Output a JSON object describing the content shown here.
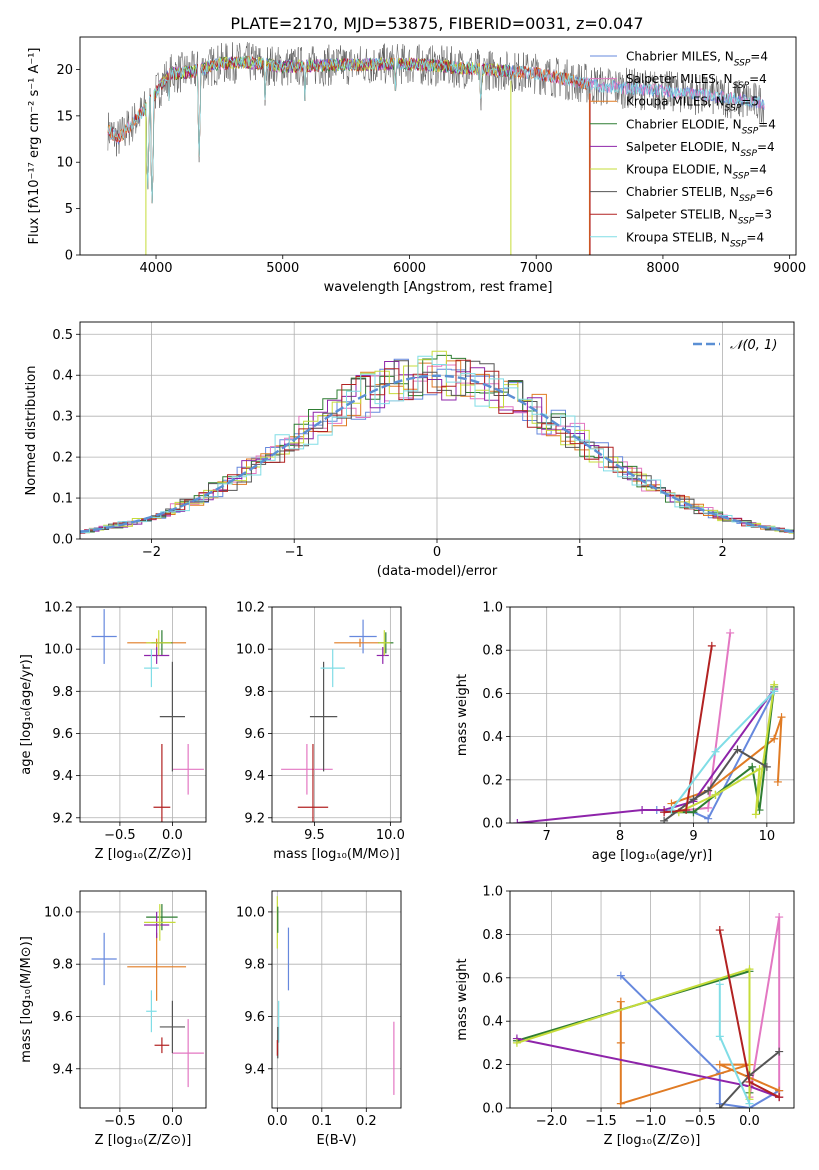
{
  "title": "PLATE=2170, MJD=53875, FIBERID=0031, z=0.047",
  "colors": {
    "Chabrier MILES": "#6688dd",
    "Salpeter MILES": "#e377c2",
    "Kroupa MILES": "#e07b24",
    "Chabrier ELODIE": "#2e7d32",
    "Salpeter ELODIE": "#8e24aa",
    "Kroupa ELODIE": "#c6dc3a",
    "Chabrier STELIB": "#555555",
    "Salpeter STELIB": "#b22222",
    "Kroupa STELIB": "#80dde6",
    "normal": "#5b8fd4"
  },
  "chart_data": [
    {
      "id": "spectrum",
      "type": "line",
      "xlabel": "wavelength [Angstrom, rest frame]",
      "ylabel": "Flux [fλ10⁻¹⁷ erg cm⁻² s⁻¹ A⁻¹]",
      "xlim": [
        3400,
        9050
      ],
      "ylim": [
        0,
        23.5
      ],
      "xticks": [
        4000,
        5000,
        6000,
        7000,
        8000,
        9000
      ],
      "yticks": [
        0,
        5,
        10,
        15,
        20
      ],
      "legend_position": "top-right",
      "legend": [
        {
          "label": "Chabrier MILES, N",
          "sub": "SSP",
          "tail": "=4",
          "series": "Chabrier MILES"
        },
        {
          "label": "Salpeter MILES, N",
          "sub": "SSP",
          "tail": "=4",
          "series": "Salpeter MILES"
        },
        {
          "label": "Kroupa MILES, N",
          "sub": "SSP",
          "tail": "=5",
          "series": "Kroupa MILES"
        },
        {
          "label": "Chabrier ELODIE, N",
          "sub": "SSP",
          "tail": "=4",
          "series": "Chabrier ELODIE"
        },
        {
          "label": "Salpeter ELODIE, N",
          "sub": "SSP",
          "tail": "=4",
          "series": "Salpeter ELODIE"
        },
        {
          "label": "Kroupa ELODIE, N",
          "sub": "SSP",
          "tail": "=4",
          "series": "Kroupa ELODIE"
        },
        {
          "label": "Chabrier STELIB, N",
          "sub": "SSP",
          "tail": "=6",
          "series": "Chabrier STELIB"
        },
        {
          "label": "Salpeter STELIB, N",
          "sub": "SSP",
          "tail": "=3",
          "series": "Salpeter STELIB"
        },
        {
          "label": "Kroupa STELIB, N",
          "sub": "SSP",
          "tail": "=4",
          "series": "Kroupa STELIB"
        }
      ],
      "continuum": {
        "x": [
          3620,
          3700,
          3800,
          3900,
          4000,
          4100,
          4300,
          4500,
          4700,
          5000,
          5500,
          6000,
          6500,
          7000,
          7500,
          8000,
          8500,
          8800
        ],
        "y": [
          13.5,
          12.5,
          14.0,
          15.5,
          17.5,
          19.5,
          19.8,
          20.6,
          20.8,
          20.3,
          20.5,
          20.6,
          20.1,
          19.6,
          18.2,
          17.7,
          17.0,
          16.3
        ]
      },
      "absorption_lines": [
        {
          "x": 3934,
          "y": 6.5
        },
        {
          "x": 3969,
          "y": 5.0
        },
        {
          "x": 4102,
          "y": 16.0
        },
        {
          "x": 4340,
          "y": 10.0
        },
        {
          "x": 4861,
          "y": 15.5
        },
        {
          "x": 5175,
          "y": 16.0
        },
        {
          "x": 5890,
          "y": 16.5
        },
        {
          "x": 6563,
          "y": 15.0
        }
      ],
      "artifacts": [
        {
          "series": "Kroupa ELODIE",
          "x": 3920,
          "y": 0
        },
        {
          "series": "Kroupa ELODIE",
          "x": 6800,
          "y": 0
        },
        {
          "series": "Kroupa MILES",
          "x": 7420,
          "y": 0
        },
        {
          "series": "Salpeter STELIB",
          "x": 7425,
          "y": 0
        }
      ]
    },
    {
      "id": "residuals",
      "type": "histogram",
      "xlabel": "(data-model)/error",
      "ylabel": "Normed distribution",
      "xlim": [
        -2.5,
        2.5
      ],
      "ylim": [
        0,
        0.53
      ],
      "xticks": [
        -2,
        -1,
        0,
        1,
        2
      ],
      "yticks": [
        0.0,
        0.1,
        0.2,
        0.3,
        0.4,
        0.5
      ],
      "bin_width": 0.1,
      "legend": "𝒩(0, 1)",
      "legend_position": "top-right",
      "curve": "standard normal pdf"
    },
    {
      "id": "age_Z",
      "type": "errorbar",
      "xlabel": "Z [log₁₀(Z/Z⊙)]",
      "ylabel": "age  [log₁₀(age/yr)]",
      "xlim": [
        -0.88,
        0.32
      ],
      "ylim": [
        9.18,
        10.2
      ],
      "xticks": [
        -0.5,
        0.0
      ],
      "yticks": [
        9.2,
        9.4,
        9.6,
        9.8,
        10.0,
        10.2
      ],
      "points": [
        {
          "series": "Chabrier MILES",
          "x": -0.65,
          "xerr": 0.12,
          "y": 10.06,
          "yerr": 0.13
        },
        {
          "series": "Salpeter MILES",
          "x": 0.15,
          "xerr": 0.15,
          "y": 9.43,
          "yerr": 0.12
        },
        {
          "series": "Kroupa MILES",
          "x": -0.15,
          "xerr": 0.28,
          "y": 10.03,
          "yerr": 0.02
        },
        {
          "series": "Chabrier ELODIE",
          "x": -0.1,
          "xerr": 0.1,
          "y": 10.03,
          "yerr": 0.06
        },
        {
          "series": "Salpeter ELODIE",
          "x": -0.15,
          "xerr": 0.12,
          "y": 9.97,
          "yerr": 0.04
        },
        {
          "series": "Kroupa ELODIE",
          "x": -0.13,
          "xerr": 0.12,
          "y": 10.03,
          "yerr": 0.06
        },
        {
          "series": "Chabrier STELIB",
          "x": 0.0,
          "xerr": 0.12,
          "y": 9.68,
          "yerr": 0.26
        },
        {
          "series": "Salpeter STELIB",
          "x": -0.1,
          "xerr": 0.08,
          "y": 9.25,
          "yerr": 0.3
        },
        {
          "series": "Kroupa STELIB",
          "x": -0.2,
          "xerr": 0.07,
          "y": 9.91,
          "yerr": 0.09
        }
      ]
    },
    {
      "id": "age_mass",
      "type": "errorbar",
      "xlabel": "mass [log₁₀(M/M⊙)]",
      "ylabel": "",
      "xlim": [
        9.22,
        10.07
      ],
      "ylim": [
        9.18,
        10.2
      ],
      "xticks": [
        9.5,
        10.0
      ],
      "yticks": [
        9.2,
        9.4,
        9.6,
        9.8,
        10.0,
        10.2
      ],
      "points": [
        {
          "series": "Chabrier MILES",
          "x": 9.82,
          "xerr": 0.09,
          "y": 10.06,
          "yerr": 0.08
        },
        {
          "series": "Salpeter MILES",
          "x": 9.45,
          "xerr": 0.17,
          "y": 9.43,
          "yerr": 0.12
        },
        {
          "series": "Kroupa MILES",
          "x": 9.8,
          "xerr": 0.17,
          "y": 10.03,
          "yerr": 0.02
        },
        {
          "series": "Chabrier ELODIE",
          "x": 9.97,
          "xerr": 0.05,
          "y": 10.03,
          "yerr": 0.05
        },
        {
          "series": "Salpeter ELODIE",
          "x": 9.95,
          "xerr": 0.04,
          "y": 9.97,
          "yerr": 0.04
        },
        {
          "series": "Kroupa ELODIE",
          "x": 9.96,
          "xerr": 0.04,
          "y": 10.03,
          "yerr": 0.06
        },
        {
          "series": "Chabrier STELIB",
          "x": 9.56,
          "xerr": 0.09,
          "y": 9.68,
          "yerr": 0.26
        },
        {
          "series": "Salpeter STELIB",
          "x": 9.49,
          "xerr": 0.1,
          "y": 9.25,
          "yerr": 0.3
        },
        {
          "series": "Kroupa STELIB",
          "x": 9.62,
          "xerr": 0.08,
          "y": 9.91,
          "yerr": 0.09
        }
      ]
    },
    {
      "id": "weight_age",
      "type": "line",
      "xlabel": "age  [log₁₀(age/yr)]",
      "ylabel": "mass weight",
      "xlim": [
        6.5,
        10.37
      ],
      "ylim": [
        0,
        1.0
      ],
      "xticks": [
        7,
        8,
        9,
        10
      ],
      "yticks": [
        0.0,
        0.2,
        0.4,
        0.6,
        0.8,
        1.0
      ],
      "series": [
        {
          "name": "Chabrier MILES",
          "x": [
            8.5,
            9.0,
            9.2,
            10.1
          ],
          "y": [
            0.06,
            0.05,
            0.02,
            0.61
          ]
        },
        {
          "name": "Salpeter MILES",
          "x": [
            8.6,
            9.2,
            9.5
          ],
          "y": [
            0.05,
            0.07,
            0.88
          ]
        },
        {
          "name": "Kroupa MILES",
          "x": [
            8.7,
            9.2,
            10.1,
            10.2,
            10.15
          ],
          "y": [
            0.09,
            0.15,
            0.39,
            0.49,
            0.19
          ]
        },
        {
          "name": "Chabrier ELODIE",
          "x": [
            8.7,
            9.0,
            9.3,
            9.8,
            9.9,
            10.1
          ],
          "y": [
            0.05,
            0.05,
            0.13,
            0.26,
            0.06,
            0.63
          ]
        },
        {
          "name": "Salpeter ELODIE",
          "x": [
            6.6,
            8.3,
            8.6,
            9.0,
            10.1
          ],
          "y": [
            0.0,
            0.06,
            0.06,
            0.1,
            0.62
          ]
        },
        {
          "name": "Kroupa ELODIE",
          "x": [
            8.8,
            9.3,
            9.9,
            9.85,
            10.1
          ],
          "y": [
            0.05,
            0.13,
            0.25,
            0.04,
            0.64
          ]
        },
        {
          "name": "Chabrier STELIB",
          "x": [
            8.6,
            9.0,
            9.2,
            9.6,
            10.0
          ],
          "y": [
            0.01,
            0.11,
            0.15,
            0.34,
            0.26
          ]
        },
        {
          "name": "Salpeter STELIB",
          "x": [
            8.6,
            8.9,
            9.25
          ],
          "y": [
            0.05,
            0.06,
            0.82
          ]
        },
        {
          "name": "Kroupa STELIB",
          "x": [
            8.7,
            9.3,
            10.1
          ],
          "y": [
            0.06,
            0.33,
            0.61
          ]
        }
      ]
    },
    {
      "id": "mass_Z",
      "type": "errorbar",
      "xlabel": "Z [log₁₀(Z/Z⊙)]",
      "ylabel": "mass [log₁₀(M/M⊙)]",
      "xlim": [
        -0.88,
        0.32
      ],
      "ylim": [
        9.25,
        10.08
      ],
      "xticks": [
        -0.5,
        0.0
      ],
      "yticks": [
        9.4,
        9.6,
        9.8,
        10.0
      ],
      "points": [
        {
          "series": "Chabrier MILES",
          "x": -0.65,
          "xerr": 0.12,
          "y": 9.82,
          "yerr": 0.1
        },
        {
          "series": "Salpeter MILES",
          "x": 0.15,
          "xerr": 0.15,
          "y": 9.46,
          "yerr": 0.13
        },
        {
          "series": "Kroupa MILES",
          "x": -0.15,
          "xerr": 0.28,
          "y": 9.79,
          "yerr": 0.13
        },
        {
          "series": "Chabrier ELODIE",
          "x": -0.1,
          "xerr": 0.15,
          "y": 9.98,
          "yerr": 0.05
        },
        {
          "series": "Salpeter ELODIE",
          "x": -0.15,
          "xerr": 0.12,
          "y": 9.95,
          "yerr": 0.05
        },
        {
          "series": "Kroupa ELODIE",
          "x": -0.12,
          "xerr": 0.15,
          "y": 9.96,
          "yerr": 0.07
        },
        {
          "series": "Chabrier STELIB",
          "x": 0.0,
          "xerr": 0.12,
          "y": 9.56,
          "yerr": 0.1
        },
        {
          "series": "Salpeter STELIB",
          "x": -0.1,
          "xerr": 0.07,
          "y": 9.49,
          "yerr": 0.03
        },
        {
          "series": "Kroupa STELIB",
          "x": -0.2,
          "xerr": 0.05,
          "y": 9.62,
          "yerr": 0.08
        }
      ]
    },
    {
      "id": "mass_ebv",
      "type": "errorbar",
      "xlabel": "E(B-V)",
      "ylabel": "",
      "xlim": [
        -0.012,
        0.278
      ],
      "ylim": [
        9.25,
        10.08
      ],
      "xticks": [
        0.0,
        0.1,
        0.2
      ],
      "yticks": [
        9.4,
        9.6,
        9.8,
        10.0
      ],
      "points": [
        {
          "series": "Chabrier MILES",
          "x": 0.025,
          "y": 9.82,
          "yerr": 0.12
        },
        {
          "series": "Salpeter MILES",
          "x": 0.262,
          "y": 9.44,
          "yerr": 0.14
        },
        {
          "series": "Kroupa ELODIE",
          "x": 0.0,
          "y": 9.96,
          "yerr": 0.1
        },
        {
          "series": "Chabrier ELODIE",
          "x": 0.001,
          "y": 9.97,
          "yerr": 0.05
        },
        {
          "series": "Kroupa STELIB",
          "x": 0.003,
          "y": 9.58,
          "yerr": 0.08
        },
        {
          "series": "Chabrier STELIB",
          "x": 0.001,
          "y": 9.5,
          "yerr": 0.06
        },
        {
          "series": "Salpeter STELIB",
          "x": 0.0,
          "y": 9.48,
          "yerr": 0.03
        }
      ]
    },
    {
      "id": "weight_Z",
      "type": "line",
      "xlabel": "Z [log₁₀(Z/Z⊙)]",
      "ylabel": "mass weight",
      "xlim": [
        -2.42,
        0.45
      ],
      "ylim": [
        0,
        1.0
      ],
      "xticks": [
        -2.0,
        -1.5,
        -1.0,
        -0.5,
        0.0
      ],
      "yticks": [
        0.0,
        0.2,
        0.4,
        0.6,
        0.8,
        1.0
      ],
      "series": [
        {
          "name": "Chabrier MILES",
          "x": [
            -1.3,
            -0.3,
            -0.3,
            0.0,
            0.3
          ],
          "y": [
            0.61,
            0.16,
            0.02,
            0.0,
            0.08
          ]
        },
        {
          "name": "Salpeter MILES",
          "x": [
            0.0,
            0.3,
            0.3
          ],
          "y": [
            0.05,
            0.88,
            0.05
          ]
        },
        {
          "name": "Kroupa MILES",
          "x": [
            -1.3,
            -1.3,
            -1.3,
            0.0,
            -0.3,
            0.3
          ],
          "y": [
            0.49,
            0.3,
            0.02,
            0.2,
            0.2,
            0.08
          ]
        },
        {
          "name": "Chabrier ELODIE",
          "x": [
            -2.35,
            0.0,
            0.0
          ],
          "y": [
            0.31,
            0.63,
            0.07
          ]
        },
        {
          "name": "Salpeter ELODIE",
          "x": [
            -2.35,
            0.0,
            0.3
          ],
          "y": [
            0.32,
            0.1,
            0.05
          ]
        },
        {
          "name": "Kroupa ELODIE",
          "x": [
            -2.35,
            0.0,
            0.0
          ],
          "y": [
            0.3,
            0.64,
            0.04
          ]
        },
        {
          "name": "Chabrier STELIB",
          "x": [
            -0.3,
            0.0,
            0.3
          ],
          "y": [
            0.0,
            0.15,
            0.26
          ]
        },
        {
          "name": "Salpeter STELIB",
          "x": [
            -0.3,
            0.0,
            0.3
          ],
          "y": [
            0.82,
            0.12,
            0.05
          ]
        },
        {
          "name": "Kroupa STELIB",
          "x": [
            -0.3,
            -0.3,
            0.0
          ],
          "y": [
            0.57,
            0.33,
            0.02
          ]
        }
      ]
    }
  ]
}
